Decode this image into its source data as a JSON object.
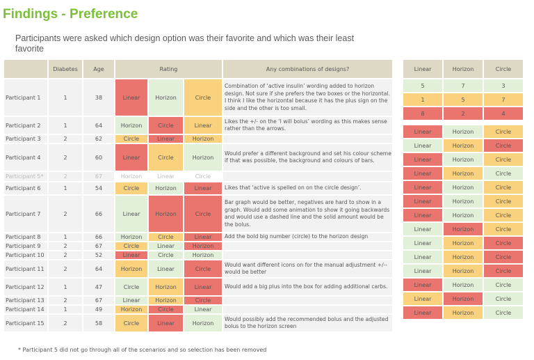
{
  "title": "Findings - Preference",
  "subtitle": "Participants were asked which design option was their favorite and which was their least favorite",
  "headers": {
    "diabetes": "Diabetes",
    "age": "Age",
    "rating": "Rating",
    "comments": "Any combinations of designs?"
  },
  "participants": [
    {
      "name": "Participant 1",
      "diabetes": "1",
      "age": "38",
      "rating": [
        "Linear",
        "Horizon",
        "Circle"
      ],
      "colors": [
        "red",
        "grn",
        "yel"
      ],
      "comment": "Combination of ‘active insulin’ wording added to horizon design. Not sure if she prefers the two boxes or the horizontal. I think I like the horizontal because it has the plus sign on the side and the other is too small.",
      "h": 52
    },
    {
      "name": "Participant 2",
      "diabetes": "1",
      "age": "64",
      "rating": [
        "Horizon",
        "Circle",
        "Linear"
      ],
      "colors": [
        "grn",
        "red",
        "yel"
      ],
      "comment": "Likes the +/- on the ‘I will bolus’ wording as this makes sense rather than the arrows.",
      "h": 24
    },
    {
      "name": "Participant 3",
      "diabetes": "2",
      "age": "62",
      "rating": [
        "Circle",
        "Linear",
        "Horizon"
      ],
      "colors": [
        "yel",
        "red",
        "yel"
      ],
      "comment": "",
      "h": 11
    },
    {
      "name": "Participant 4",
      "diabetes": "2",
      "age": "60",
      "rating": [
        "Linear",
        "Circle",
        "Horizon"
      ],
      "colors": [
        "red",
        "yel",
        "grn"
      ],
      "comment": "Would prefer a different background and set his colour scheme if that was possible, the background and colours of bars.",
      "h": 38
    },
    {
      "name": "Participant 5*",
      "diabetes": "2",
      "age": "67",
      "rating": [
        "Horizon",
        "Linear",
        "Circle"
      ],
      "colors": [
        "wh",
        "wh",
        "wh"
      ],
      "comment": "",
      "h": 13,
      "excluded": true
    },
    {
      "name": "Participant 6",
      "diabetes": "1",
      "age": "54",
      "rating": [
        "Circle",
        "Horizon",
        "Linear"
      ],
      "colors": [
        "yel",
        "grn",
        "red"
      ],
      "comment": "Likes that ‘active is spelled on on the circle design’.",
      "h": 17
    },
    {
      "name": "Participant 7",
      "diabetes": "2",
      "age": "66",
      "rating": [
        "Linear",
        "Horizon",
        "Circle"
      ],
      "colors": [
        "grn",
        "red",
        "red"
      ],
      "comment": "Bar graph would be better, negatives are hard to show in a graph. Would add some animation to show it going backwards and would use a dashed line and the solid amount would be the bolus.",
      "h": 52
    },
    {
      "name": "Participant 8",
      "diabetes": "1",
      "age": "66",
      "rating": [
        "Horizon",
        "Circle",
        "Linear"
      ],
      "colors": [
        "grn",
        "yel",
        "red"
      ],
      "comment": "Add the bold big number (circle) to the horizon design",
      "h": 11
    },
    {
      "name": "Participant 9",
      "diabetes": "2",
      "age": "67",
      "rating": [
        "Circle",
        "Linear",
        "Horizon"
      ],
      "colors": [
        "yel",
        "grn",
        "red"
      ],
      "comment": "",
      "h": 11
    },
    {
      "name": "Participant 10",
      "diabetes": "2",
      "age": "52",
      "rating": [
        "Linear",
        "Circle",
        "Horizon"
      ],
      "colors": [
        "red",
        "grn",
        "grn"
      ],
      "comment": "",
      "h": 11
    },
    {
      "name": "Participant 11",
      "diabetes": "2",
      "age": "64",
      "rating": [
        "Horizon",
        "Linear",
        "Circle"
      ],
      "colors": [
        "yel",
        "grn",
        "red"
      ],
      "comment": "Would want different icons on for the manual adjustment +/-- would be better",
      "h": 24
    },
    {
      "name": "Participant 12",
      "diabetes": "1",
      "age": "47",
      "rating": [
        "Circle",
        "Horizon",
        "Linear"
      ],
      "colors": [
        "grn",
        "yel",
        "red"
      ],
      "comment": "Would add a big plus into the box for adding additional carbs.",
      "h": 24
    },
    {
      "name": "Participant 13",
      "diabetes": "2",
      "age": "67",
      "rating": [
        "Linear",
        "Horizon",
        "Circle"
      ],
      "colors": [
        "grn",
        "yel",
        "red"
      ],
      "comment": "",
      "h": 11
    },
    {
      "name": "Participant 14",
      "diabetes": "1",
      "age": "49",
      "rating": [
        "Horizon",
        "Circle",
        "Linear"
      ],
      "colors": [
        "yel",
        "red",
        "grn"
      ],
      "comment": "",
      "h": 11
    },
    {
      "name": "Participant 15",
      "diabetes": "2",
      "age": "58",
      "rating": [
        "Circle",
        "Linear",
        "Horizon"
      ],
      "colors": [
        "yel",
        "red",
        "grn"
      ],
      "comment": "Would possibly add the recommended bolus and the adjusted bolus to the horizon screen",
      "h": 24
    }
  ],
  "summary": {
    "headers": [
      "Linear",
      "Horizon",
      "Circle"
    ],
    "rows": [
      {
        "values": [
          "5",
          "7",
          "3"
        ],
        "colors": [
          "grn",
          "grn",
          "grn"
        ]
      },
      {
        "values": [
          "1",
          "5",
          "7"
        ],
        "colors": [
          "yel",
          "yel",
          "yel"
        ]
      },
      {
        "values": [
          "8",
          "2",
          "4"
        ],
        "colors": [
          "red",
          "red",
          "red"
        ]
      }
    ],
    "ranks": [
      {
        "values": [
          "Linear",
          "Horizon",
          "Circle"
        ],
        "colors": [
          "red",
          "grn",
          "yel"
        ]
      },
      {
        "values": [
          "Linear",
          "Horizon",
          "Circle"
        ],
        "colors": [
          "grn",
          "yel",
          "red"
        ]
      },
      {
        "values": [
          "Linear",
          "Horizon",
          "Circle"
        ],
        "colors": [
          "red",
          "grn",
          "yel"
        ]
      },
      {
        "values": [
          "Linear",
          "Horizon",
          "Circle"
        ],
        "colors": [
          "red",
          "yel",
          "grn"
        ]
      },
      {
        "values": [
          "Linear",
          "Horizon",
          "Circle"
        ],
        "colors": [
          "red",
          "grn",
          "yel"
        ]
      },
      {
        "values": [
          "Linear",
          "Horizon",
          "Circle"
        ],
        "colors": [
          "red",
          "grn",
          "yel"
        ]
      },
      {
        "values": [
          "Linear",
          "Horizon",
          "Circle"
        ],
        "colors": [
          "red",
          "grn",
          "yel"
        ]
      },
      {
        "values": [
          "Linear",
          "Horizon",
          "Circle"
        ],
        "colors": [
          "grn",
          "red",
          "yel"
        ]
      },
      {
        "values": [
          "Linear",
          "Horizon",
          "Circle"
        ],
        "colors": [
          "grn",
          "yel",
          "red"
        ]
      },
      {
        "values": [
          "Linear",
          "Horizon",
          "Circle"
        ],
        "colors": [
          "grn",
          "yel",
          "red"
        ]
      },
      {
        "values": [
          "Linear",
          "Horizon",
          "Circle"
        ],
        "colors": [
          "grn",
          "yel",
          "red"
        ]
      },
      {
        "values": [
          "Linear",
          "Horizon",
          "Circle"
        ],
        "colors": [
          "red",
          "grn",
          "grn"
        ]
      },
      {
        "values": [
          "Linear",
          "Horizon",
          "Circle"
        ],
        "colors": [
          "yel",
          "red",
          "grn"
        ]
      },
      {
        "values": [
          "Linear",
          "Horizon",
          "Circle"
        ],
        "colors": [
          "red",
          "yel",
          "grn"
        ]
      }
    ]
  },
  "footnote": "* Participant 5 did not go through all of the scenarios and so selection has been removed"
}
